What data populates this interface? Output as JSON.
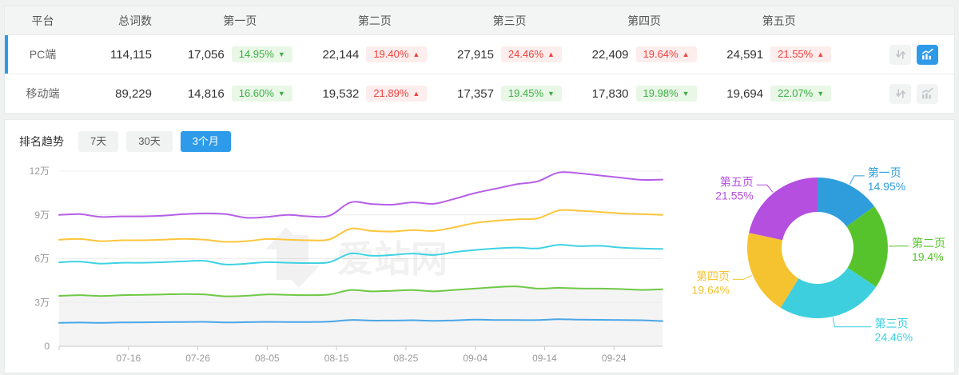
{
  "colors": {
    "accent_blue": "#2e9bea",
    "badge_up_red": "#f0413e",
    "badge_up_red_bg": "#fdeded",
    "badge_down_green": "#3cb043",
    "badge_down_green_bg": "#e9f7e7",
    "selected_row_indicator": "#2e9bea"
  },
  "table": {
    "columns": [
      "平台",
      "总词数",
      "第一页",
      "第二页",
      "第三页",
      "第四页",
      "第五页"
    ],
    "rows": [
      {
        "platform": "PC端",
        "total": "114,115",
        "selected": true,
        "pages": [
          {
            "value": "17,056",
            "pct": "14.95%",
            "dir": "down"
          },
          {
            "value": "22,144",
            "pct": "19.40%",
            "dir": "up"
          },
          {
            "value": "27,915",
            "pct": "24.46%",
            "dir": "up"
          },
          {
            "value": "22,409",
            "pct": "19.64%",
            "dir": "up"
          },
          {
            "value": "24,591",
            "pct": "21.55%",
            "dir": "up"
          }
        ],
        "actions": {
          "sort_icon": "sort-arrows-icon",
          "trend_icon": "trend-chart-icon",
          "trend_active": true
        }
      },
      {
        "platform": "移动端",
        "total": "89,229",
        "selected": false,
        "pages": [
          {
            "value": "14,816",
            "pct": "16.60%",
            "dir": "down"
          },
          {
            "value": "19,532",
            "pct": "21.89%",
            "dir": "up"
          },
          {
            "value": "17,357",
            "pct": "19.45%",
            "dir": "down"
          },
          {
            "value": "17,830",
            "pct": "19.98%",
            "dir": "down"
          },
          {
            "value": "19,694",
            "pct": "22.07%",
            "dir": "down"
          }
        ],
        "actions": {
          "sort_icon": "sort-arrows-icon",
          "trend_icon": "trend-chart-icon",
          "trend_active": false
        }
      }
    ]
  },
  "trend_section": {
    "title": "排名趋势",
    "tabs": [
      {
        "label": "7天",
        "active": false
      },
      {
        "label": "30天",
        "active": false
      },
      {
        "label": "3个月",
        "active": true
      }
    ]
  },
  "watermark": {
    "text": "爱站网",
    "icon": "aizhan-logo-icon"
  },
  "chart_data": [
    {
      "type": "line",
      "title": "排名趋势 (3个月)",
      "unit": "万 (values are cumulative keyword counts, in units of 10,000)",
      "grid": true,
      "legend": "none",
      "ylim_wan": [
        0,
        12
      ],
      "y_ticks": [
        "0",
        "3万",
        "6万",
        "9万",
        "12万"
      ],
      "x_ticks": [
        "07-16",
        "07-26",
        "08-05",
        "08-15",
        "08-25",
        "09-04",
        "09-14",
        "09-24"
      ],
      "x": [
        "07-06",
        "07-09",
        "07-12",
        "07-15",
        "07-18",
        "07-21",
        "07-24",
        "07-27",
        "07-30",
        "08-02",
        "08-05",
        "08-08",
        "08-11",
        "08-14",
        "08-17",
        "08-20",
        "08-23",
        "08-26",
        "08-29",
        "09-01",
        "09-04",
        "09-07",
        "09-10",
        "09-13",
        "09-16",
        "09-19",
        "09-22",
        "09-25",
        "09-28",
        "10-01"
      ],
      "series": [
        {
          "name": "第一页",
          "color": "#4aa6e8",
          "values_wan": [
            1.6,
            1.62,
            1.6,
            1.63,
            1.64,
            1.65,
            1.66,
            1.67,
            1.63,
            1.65,
            1.67,
            1.66,
            1.66,
            1.68,
            1.8,
            1.76,
            1.76,
            1.78,
            1.74,
            1.77,
            1.82,
            1.8,
            1.79,
            1.79,
            1.85,
            1.82,
            1.81,
            1.8,
            1.78,
            1.72
          ]
        },
        {
          "name": "第二页",
          "color": "#6fc845",
          "area_fill": "#f4f4f4",
          "values_wan": [
            3.45,
            3.5,
            3.44,
            3.5,
            3.52,
            3.55,
            3.58,
            3.55,
            3.42,
            3.46,
            3.55,
            3.52,
            3.5,
            3.55,
            3.85,
            3.76,
            3.8,
            3.85,
            3.76,
            3.86,
            3.95,
            4.05,
            4.1,
            3.95,
            4.0,
            3.96,
            3.95,
            3.92,
            3.86,
            3.9
          ]
        },
        {
          "name": "第三页",
          "color": "#3fd2e2",
          "values_wan": [
            5.75,
            5.8,
            5.66,
            5.72,
            5.72,
            5.76,
            5.82,
            5.85,
            5.6,
            5.66,
            5.76,
            5.72,
            5.7,
            5.76,
            6.35,
            6.2,
            6.25,
            6.35,
            6.25,
            6.45,
            6.6,
            6.7,
            6.76,
            6.7,
            6.95,
            6.86,
            6.88,
            6.76,
            6.7,
            6.67
          ]
        },
        {
          "name": "第四页",
          "color": "#fcc53a",
          "values_wan": [
            7.3,
            7.35,
            7.2,
            7.26,
            7.26,
            7.3,
            7.36,
            7.3,
            7.15,
            7.2,
            7.35,
            7.3,
            7.26,
            7.32,
            8.05,
            7.9,
            7.86,
            7.96,
            7.9,
            8.15,
            8.45,
            8.6,
            8.7,
            8.76,
            9.3,
            9.28,
            9.2,
            9.1,
            9.05,
            9.0
          ]
        },
        {
          "name": "第五页",
          "color": "#b55fe8",
          "values_wan": [
            9.0,
            9.05,
            8.86,
            8.9,
            8.9,
            8.95,
            9.05,
            9.1,
            9.05,
            8.8,
            8.86,
            9.0,
            8.9,
            8.95,
            9.85,
            9.75,
            9.7,
            9.86,
            9.76,
            10.1,
            10.5,
            10.8,
            11.1,
            11.3,
            11.9,
            11.85,
            11.7,
            11.55,
            11.4,
            11.42
          ]
        }
      ]
    },
    {
      "type": "pie",
      "donut": true,
      "start_angle": "top",
      "clockwise": true,
      "slices": [
        {
          "label": "第一页",
          "value_pct": 14.95,
          "display": "14.95%",
          "color": "#2f9ddb"
        },
        {
          "label": "第二页",
          "value_pct": 19.4,
          "display": "19.4%",
          "color": "#57c32c"
        },
        {
          "label": "第三页",
          "value_pct": 24.46,
          "display": "24.46%",
          "color": "#3ecfdf"
        },
        {
          "label": "第四页",
          "value_pct": 19.64,
          "display": "19.64%",
          "color": "#f5c32f"
        },
        {
          "label": "第五页",
          "value_pct": 21.55,
          "display": "21.55%",
          "color": "#b44fe0"
        }
      ]
    }
  ]
}
